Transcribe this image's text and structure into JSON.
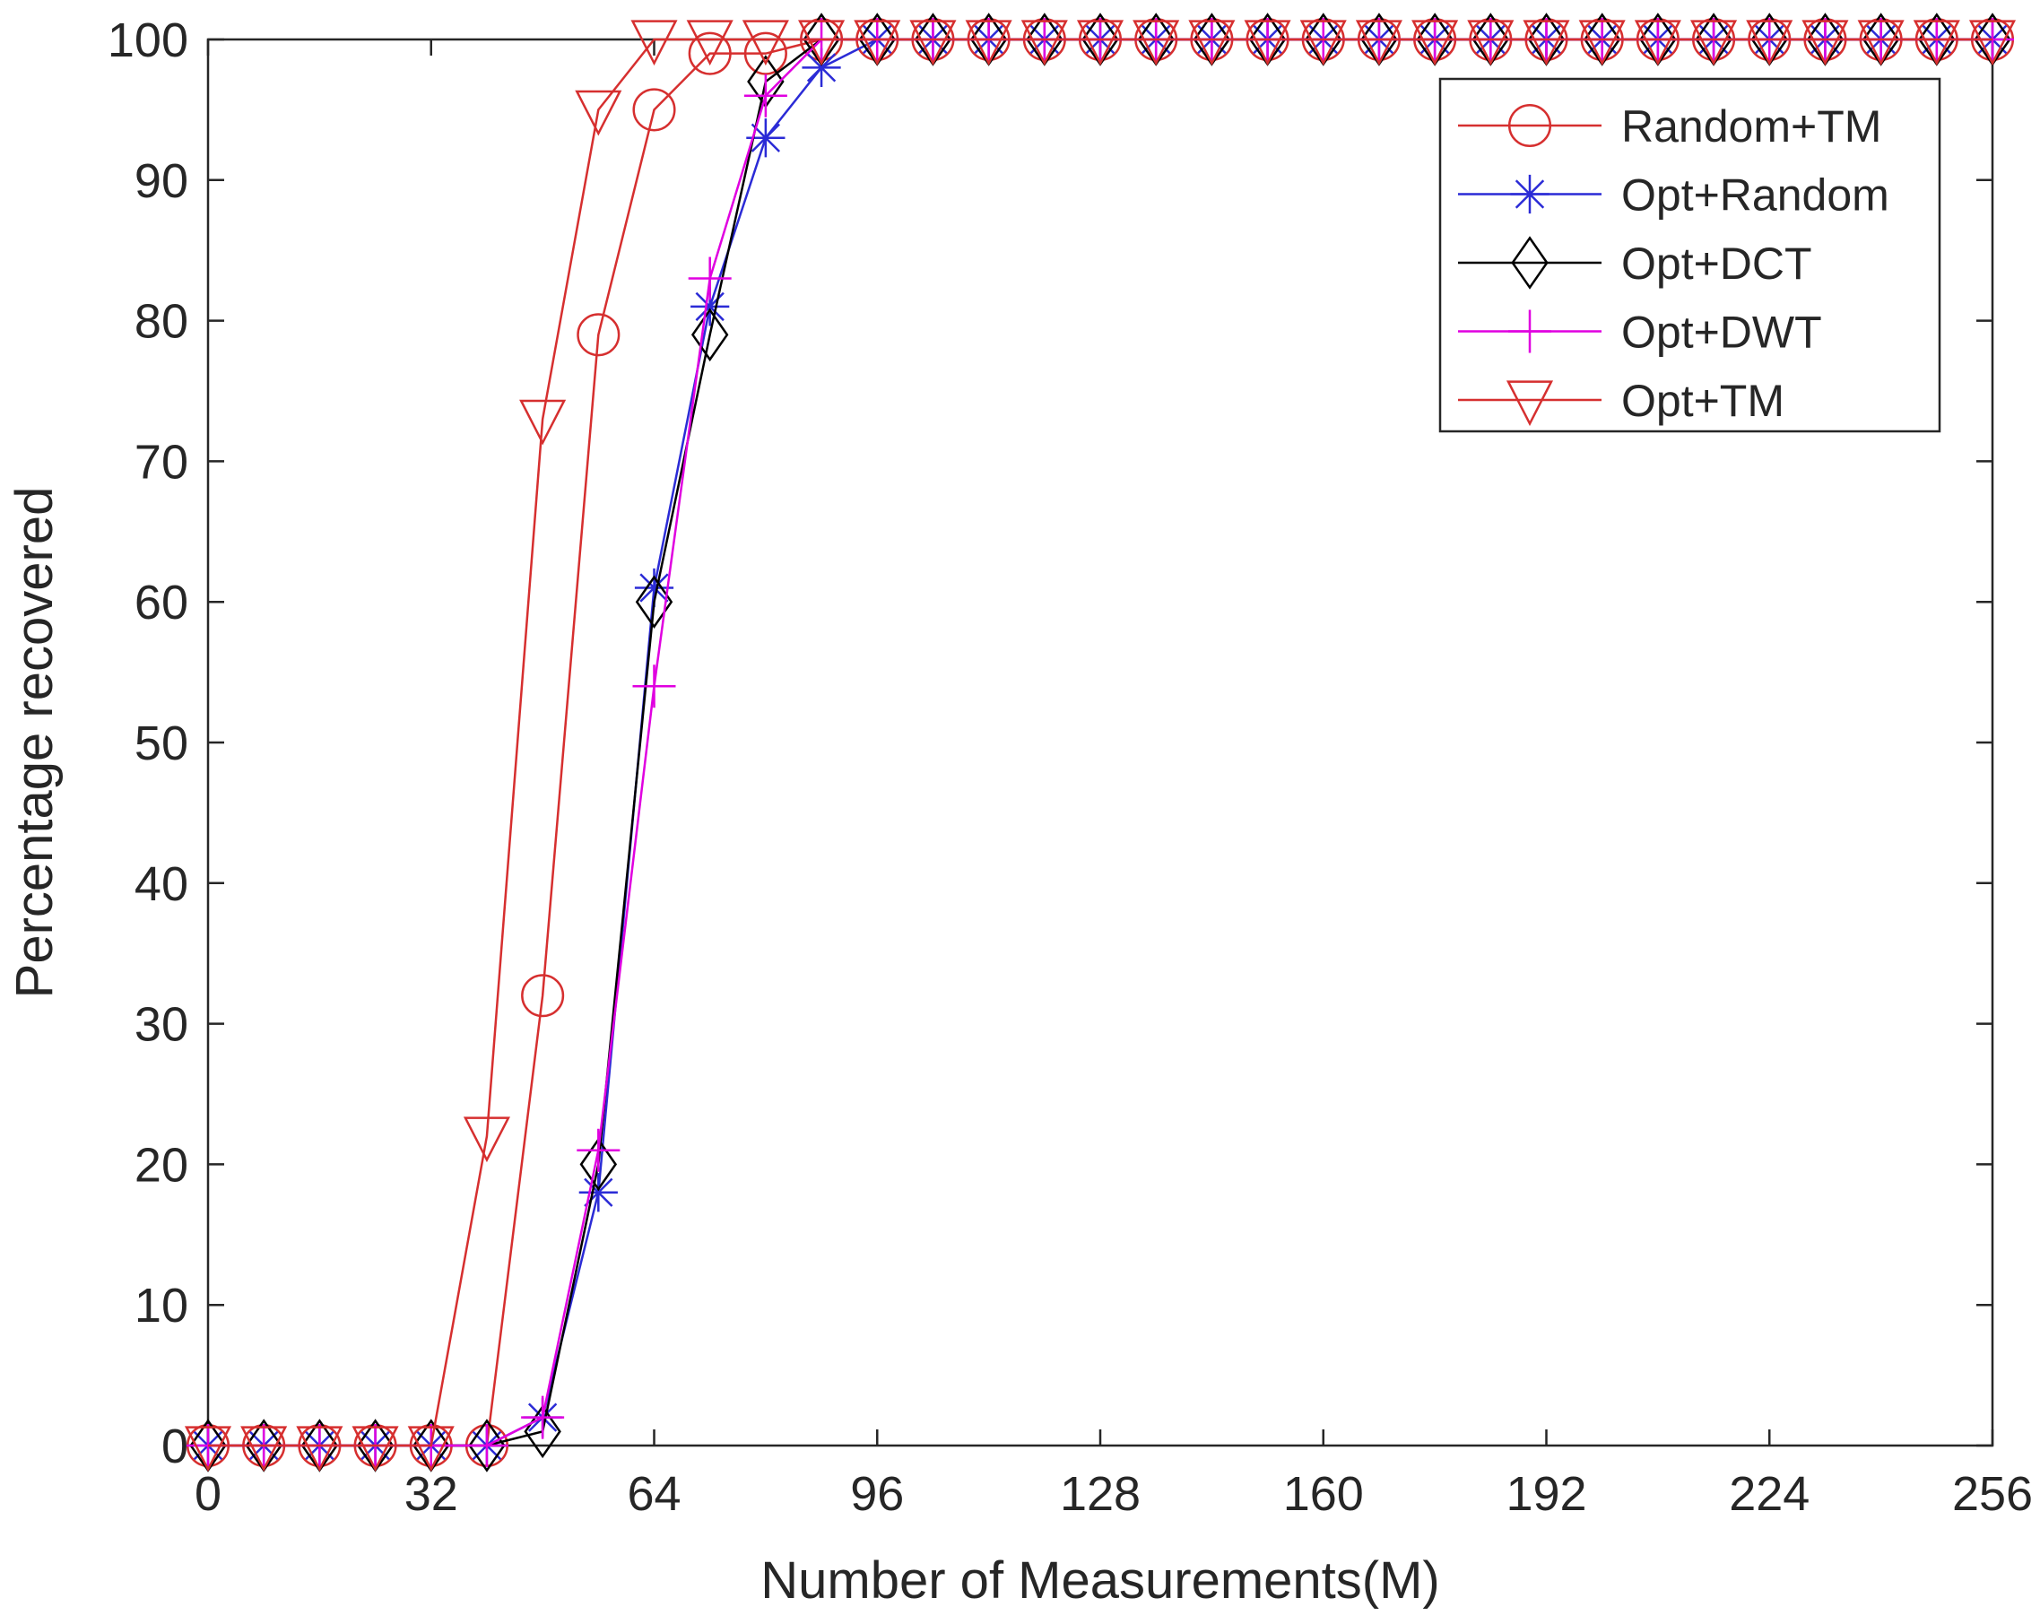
{
  "chart_data": {
    "type": "line",
    "xlabel": "Number of Measurements(M)",
    "ylabel": "Percentage recovered",
    "xlim": [
      0,
      256
    ],
    "ylim": [
      0,
      100
    ],
    "xticks": [
      0,
      32,
      64,
      96,
      128,
      160,
      192,
      224,
      256
    ],
    "yticks": [
      0,
      10,
      20,
      30,
      40,
      50,
      60,
      70,
      80,
      90,
      100
    ],
    "grid": false,
    "legend_position": "top-right",
    "x": [
      0,
      8,
      16,
      24,
      32,
      40,
      48,
      56,
      64,
      72,
      80,
      88,
      96,
      104,
      112,
      120,
      128,
      136,
      144,
      152,
      160,
      168,
      176,
      184,
      192,
      200,
      208,
      216,
      224,
      232,
      240,
      248,
      256
    ],
    "series": [
      {
        "name": "Random+TM",
        "color": "#d62f2f",
        "marker": "circle",
        "values": [
          0,
          0,
          0,
          0,
          0,
          0,
          32,
          79,
          95,
          99,
          99,
          100,
          100,
          100,
          100,
          100,
          100,
          100,
          100,
          100,
          100,
          100,
          100,
          100,
          100,
          100,
          100,
          100,
          100,
          100,
          100,
          100,
          100
        ]
      },
      {
        "name": "Opt+Random",
        "color": "#2b2bd6",
        "marker": "asterisk",
        "values": [
          0,
          0,
          0,
          0,
          0,
          0,
          2,
          18,
          61,
          81,
          93,
          98,
          100,
          100,
          100,
          100,
          100,
          100,
          100,
          100,
          100,
          100,
          100,
          100,
          100,
          100,
          100,
          100,
          100,
          100,
          100,
          100,
          100
        ]
      },
      {
        "name": "Opt+DCT",
        "color": "#000000",
        "marker": "diamond",
        "values": [
          0,
          0,
          0,
          0,
          0,
          0,
          1,
          20,
          60,
          79,
          97,
          100,
          100,
          100,
          100,
          100,
          100,
          100,
          100,
          100,
          100,
          100,
          100,
          100,
          100,
          100,
          100,
          100,
          100,
          100,
          100,
          100,
          100
        ]
      },
      {
        "name": "Opt+DWT",
        "color": "#e000e0",
        "marker": "plus",
        "values": [
          0,
          0,
          0,
          0,
          0,
          0,
          2,
          21,
          54,
          83,
          96,
          100,
          100,
          100,
          100,
          100,
          100,
          100,
          100,
          100,
          100,
          100,
          100,
          100,
          100,
          100,
          100,
          100,
          100,
          100,
          100,
          100,
          100
        ]
      },
      {
        "name": "Opt+TM",
        "color": "#d62f2f",
        "marker": "triangle-down",
        "values": [
          0,
          0,
          0,
          0,
          0,
          22,
          73,
          95,
          100,
          100,
          100,
          100,
          100,
          100,
          100,
          100,
          100,
          100,
          100,
          100,
          100,
          100,
          100,
          100,
          100,
          100,
          100,
          100,
          100,
          100,
          100,
          100,
          100
        ]
      }
    ]
  }
}
